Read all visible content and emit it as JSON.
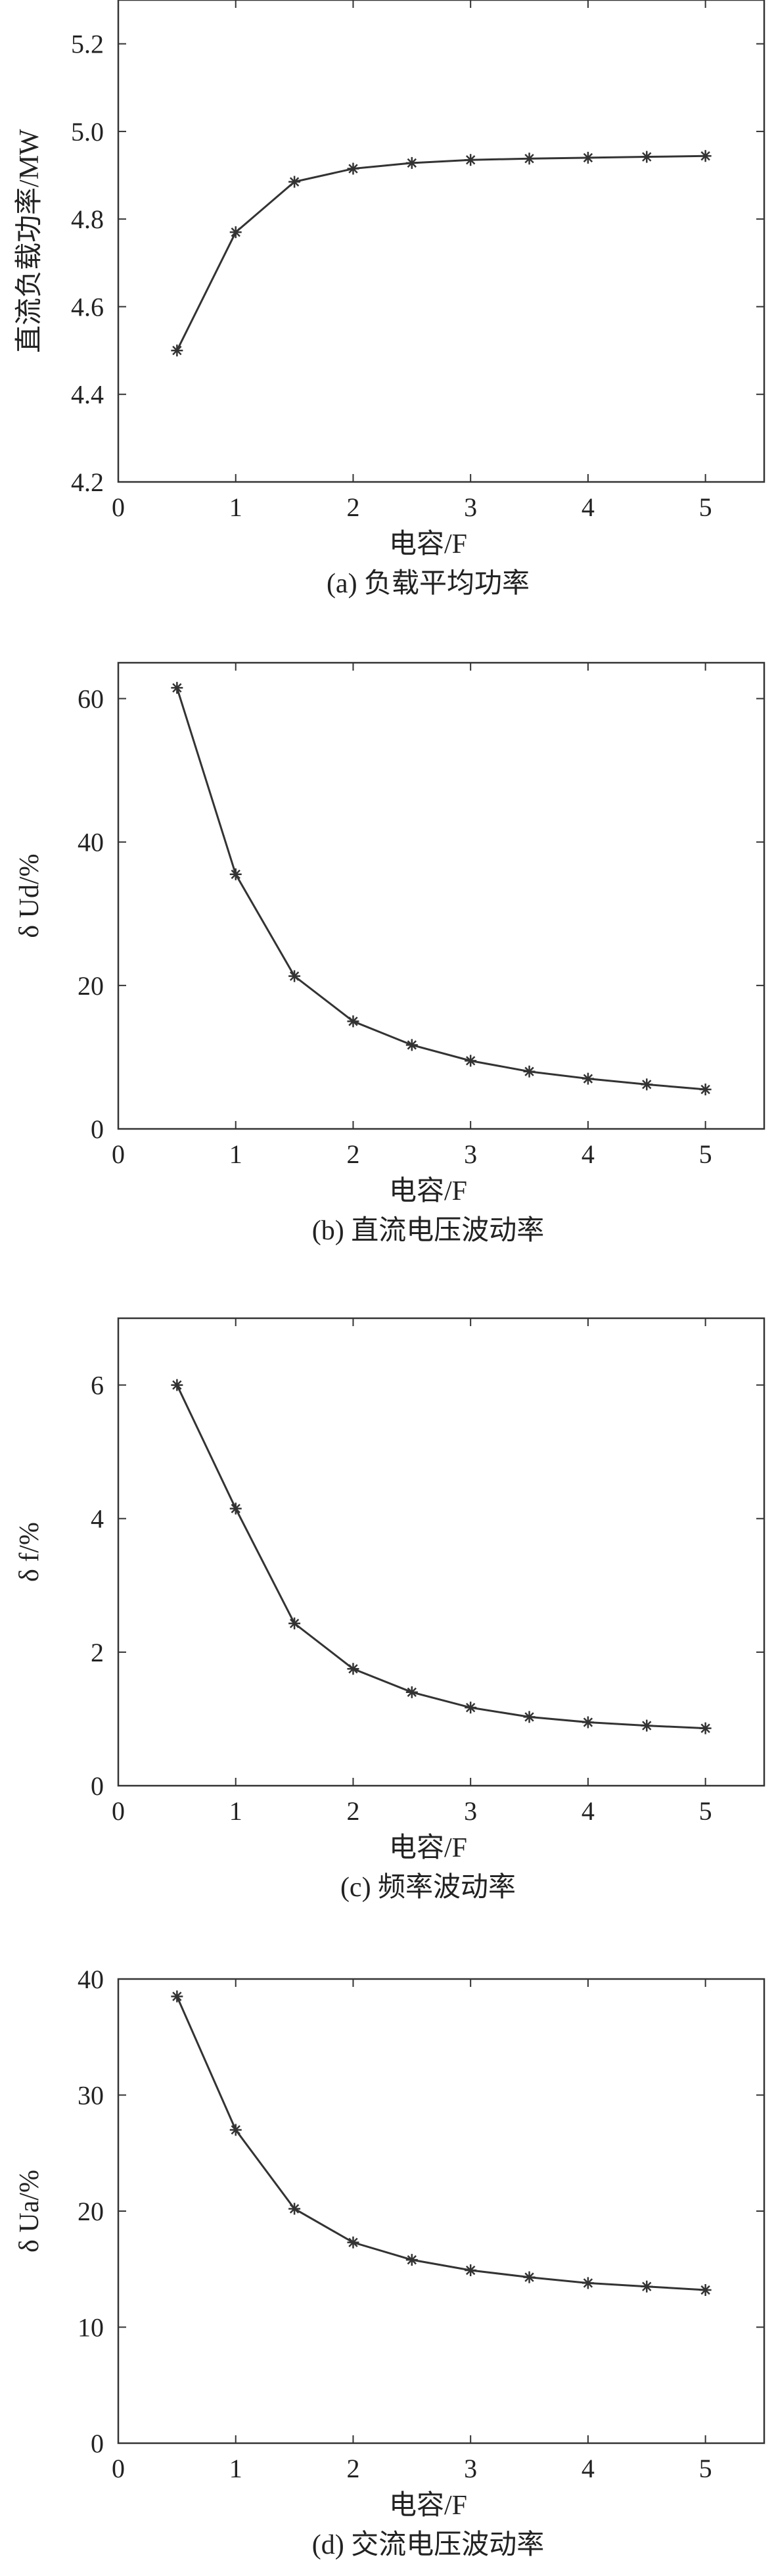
{
  "chart_data": [
    {
      "type": "line",
      "caption": "(a) 负载平均功率",
      "xlabel": "电容/F",
      "ylabel": "直流负载功率/MW",
      "xlim": [
        0,
        5.5
      ],
      "ylim": [
        4.2,
        5.3
      ],
      "xticks": [
        "0",
        "1",
        "2",
        "3",
        "4",
        "5"
      ],
      "yticks": [
        "4.2",
        "4.4",
        "4.6",
        "4.8",
        "5.0",
        "5.2"
      ],
      "x": [
        0.5,
        1.0,
        1.5,
        2.0,
        2.5,
        3.0,
        3.5,
        4.0,
        4.5,
        5.0
      ],
      "series": [
        {
          "values": [
            4.5,
            4.77,
            4.885,
            4.915,
            4.928,
            4.935,
            4.938,
            4.94,
            4.942,
            4.944
          ]
        }
      ],
      "marker": "asterisk",
      "line_color": "#333333"
    },
    {
      "type": "line",
      "caption": "(b) 直流电压波动率",
      "xlabel": "电容/F",
      "ylabel": "δ Ud/%",
      "xlim": [
        0,
        5.5
      ],
      "ylim": [
        0,
        65
      ],
      "xticks": [
        "0",
        "1",
        "2",
        "3",
        "4",
        "5"
      ],
      "yticks": [
        "0",
        "20",
        "40",
        "60"
      ],
      "x": [
        0.5,
        1.0,
        1.5,
        2.0,
        2.5,
        3.0,
        3.5,
        4.0,
        4.5,
        5.0
      ],
      "series": [
        {
          "values": [
            61.5,
            35.5,
            21.3,
            15.0,
            11.7,
            9.5,
            8.0,
            7.0,
            6.2,
            5.5
          ]
        }
      ],
      "marker": "asterisk",
      "line_color": "#333333"
    },
    {
      "type": "line",
      "caption": "(c) 频率波动率",
      "xlabel": "电容/F",
      "ylabel": "δ f/%",
      "xlim": [
        0,
        5.5
      ],
      "ylim": [
        0,
        7
      ],
      "xticks": [
        "0",
        "1",
        "2",
        "3",
        "4",
        "5"
      ],
      "yticks": [
        "0",
        "2",
        "4",
        "6"
      ],
      "x": [
        0.5,
        1.0,
        1.5,
        2.0,
        2.5,
        3.0,
        3.5,
        4.0,
        4.5,
        5.0
      ],
      "series": [
        {
          "values": [
            6.0,
            4.15,
            2.43,
            1.75,
            1.4,
            1.17,
            1.03,
            0.95,
            0.9,
            0.86
          ]
        }
      ],
      "marker": "asterisk",
      "line_color": "#333333"
    },
    {
      "type": "line",
      "caption": "(d) 交流电压波动率",
      "xlabel": "电容/F",
      "ylabel": "δ Ua/%",
      "xlim": [
        0,
        5.5
      ],
      "ylim": [
        0,
        40
      ],
      "xticks": [
        "0",
        "1",
        "2",
        "3",
        "4",
        "5"
      ],
      "yticks": [
        "0",
        "10",
        "20",
        "30",
        "40"
      ],
      "x": [
        0.5,
        1.0,
        1.5,
        2.0,
        2.5,
        3.0,
        3.5,
        4.0,
        4.5,
        5.0
      ],
      "series": [
        {
          "values": [
            38.5,
            27.0,
            20.2,
            17.3,
            15.8,
            14.9,
            14.3,
            13.8,
            13.5,
            13.2
          ]
        }
      ],
      "marker": "asterisk",
      "line_color": "#333333"
    }
  ]
}
